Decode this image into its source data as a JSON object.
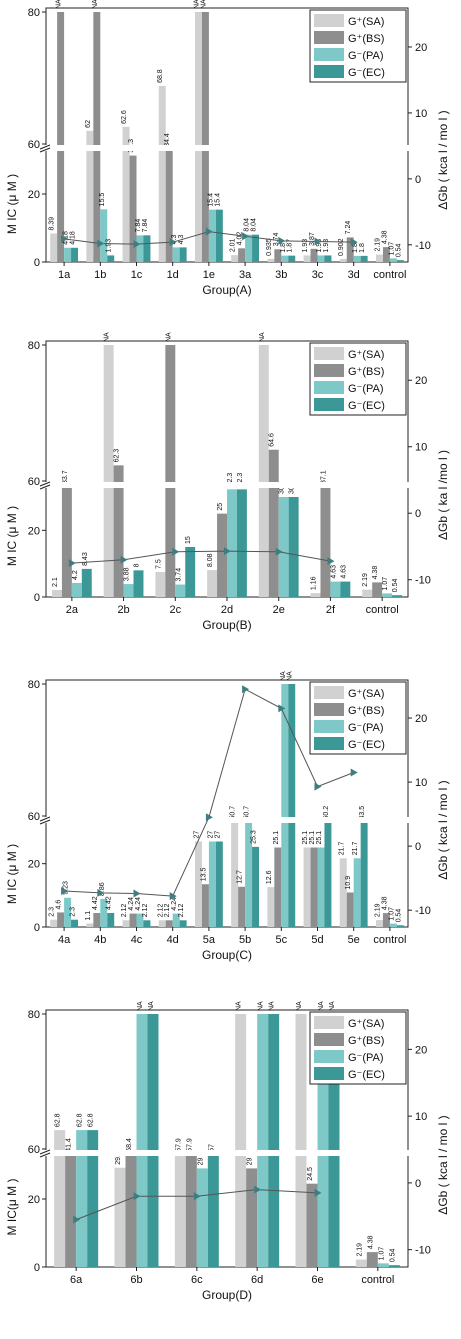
{
  "figure": {
    "background": "#ffffff"
  },
  "chart_data": [
    {
      "type": "bar",
      "xlabel": "Group(A)",
      "ylabel": "M IC (μ M )",
      "y2label": "ΔGb ( kca l / mo l )",
      "categories": [
        "1a",
        "1b",
        "1c",
        "1d",
        "1e",
        "3a",
        "3b",
        "3c",
        "3d",
        "control"
      ],
      "broken_axis": {
        "lower": [
          0,
          60
        ],
        "upper": [
          60,
          80
        ]
      },
      "yticks_lower": [
        0,
        20
      ],
      "yticks_upper": [
        60,
        80
      ],
      "y2lim": [
        -12,
        25
      ],
      "y2ticks": [
        -10,
        0,
        10,
        20
      ],
      "legend": {
        "position": "top-right",
        "labels": [
          "G⁺(SA)",
          "G⁺(BS)",
          "G⁻(PA)",
          "G⁻(EC)"
        ]
      },
      "series": [
        {
          "name": "G⁺(SA)",
          "color": "#d1d1d1",
          "values": [
            8.39,
            62,
            62.6,
            68.8,
            80,
            2.01,
            0.935,
            1.93,
            0.902,
            2.19
          ]
        },
        {
          "name": "G⁺(BS)",
          "color": "#8e8e8e",
          "values": [
            80,
            80,
            31.3,
            34.4,
            80,
            4.02,
            3.74,
            3.87,
            7.24,
            4.38
          ]
        },
        {
          "name": "G⁻(PA)",
          "color": "#7ec9c8",
          "values": [
            4.18,
            15.5,
            7.84,
            4.3,
            15.4,
            8.04,
            1.87,
            1.93,
            1.8,
            1.07
          ]
        },
        {
          "name": "G⁻(EC)",
          "color": "#3c9896",
          "values": [
            4.18,
            1.93,
            7.84,
            4.3,
            15.4,
            8.04,
            1.87,
            1.93,
            1.8,
            0.54
          ]
        }
      ],
      "bar_labels": [
        [
          "8.39",
          "NA",
          "4.18",
          "4.18"
        ],
        [
          "62",
          "NA",
          "15.5",
          "1.93"
        ],
        [
          "62.6",
          "31.3",
          "7.84",
          "7.84"
        ],
        [
          "68.8",
          "34.4",
          "4.3",
          "4.3"
        ],
        [
          "NA",
          "NA",
          "15.4",
          "15.4"
        ],
        [
          "2.01",
          "4.02",
          "8.04",
          "8.04"
        ],
        [
          "0.935",
          "3.74",
          "1.87",
          "1.87"
        ],
        [
          "1.93",
          "3.87",
          "1.93",
          "1.93"
        ],
        [
          "0.902",
          "7.24",
          "1.8",
          "1.8"
        ],
        [
          "2.19",
          "4.38",
          "1.07",
          "0.54"
        ]
      ],
      "dg_series": {
        "color": "#3f7e80",
        "values": [
          -9.1,
          -9.8,
          -9.9,
          -9.6,
          -8.0,
          -8.7,
          -9.4,
          -9.5,
          -9.6,
          null
        ]
      }
    },
    {
      "type": "bar",
      "xlabel": "Group(B)",
      "ylabel": "M IC (μ M )",
      "y2label": "ΔGb ( ka l /mo l )",
      "categories": [
        "2a",
        "2b",
        "2c",
        "2d",
        "2e",
        "2f",
        "control"
      ],
      "broken_axis": {
        "lower": [
          0,
          60
        ],
        "upper": [
          60,
          80
        ]
      },
      "yticks_lower": [
        0,
        20
      ],
      "yticks_upper": [
        60,
        80
      ],
      "y2lim": [
        -12,
        25
      ],
      "y2ticks": [
        -10,
        0,
        10,
        20
      ],
      "legend": {
        "position": "top-right",
        "labels": [
          "G⁺(SA)",
          "G⁺(BS)",
          "G⁻(PA)",
          "G⁻(EC)"
        ]
      },
      "series": [
        {
          "name": "G⁺(SA)",
          "color": "#d1d1d1",
          "values": [
            2.1,
            80,
            7.5,
            8.08,
            80,
            1.16,
            2.19
          ]
        },
        {
          "name": "G⁺(BS)",
          "color": "#8e8e8e",
          "values": [
            33.7,
            62.3,
            80,
            25,
            64.6,
            37.1,
            4.38
          ]
        },
        {
          "name": "G⁻(PA)",
          "color": "#7ec9c8",
          "values": [
            4.2,
            3.88,
            3.74,
            32.3,
            30,
            4.63,
            1.07
          ]
        },
        {
          "name": "G⁻(EC)",
          "color": "#3c9896",
          "values": [
            8.43,
            8,
            15,
            32.3,
            30,
            4.63,
            0.54
          ]
        }
      ],
      "bar_labels": [
        [
          "2.1",
          "33.7",
          "4.2",
          "8.43"
        ],
        [
          "NA",
          "62.3",
          "3.88",
          "8"
        ],
        [
          "7.5",
          "NA",
          "3.74",
          "15"
        ],
        [
          "8.08",
          "25",
          "32.3",
          "32.3"
        ],
        [
          "NA",
          "64.6",
          "30",
          "30"
        ],
        [
          "1.16",
          "37.1",
          "4.63",
          "4.63"
        ],
        [
          "2.19",
          "4.38",
          "1.07",
          "0.54"
        ]
      ],
      "dg_series": {
        "color": "#3f7e80",
        "values": [
          -7.5,
          -7.0,
          -5.8,
          -5.7,
          -5.8,
          -7.2,
          null
        ]
      }
    },
    {
      "type": "bar",
      "xlabel": "Group(C)",
      "ylabel": "M IC (μ M )",
      "y2label": "ΔGb ( kca l / mo l )",
      "categories": [
        "4a",
        "4b",
        "4c",
        "4d",
        "5a",
        "5b",
        "5c",
        "5d",
        "5e",
        "control"
      ],
      "broken_axis": {
        "lower": [
          0,
          60
        ],
        "upper": [
          60,
          80
        ]
      },
      "yticks_lower": [
        0,
        20
      ],
      "yticks_upper": [
        60,
        80
      ],
      "y2lim": [
        -12,
        25
      ],
      "y2ticks": [
        -10,
        0,
        10,
        20
      ],
      "legend": {
        "position": "top-right",
        "labels": [
          "G⁺(SA)",
          "G⁺(BS)",
          "G⁻(PA)",
          "G⁻(EC)"
        ]
      },
      "series": [
        {
          "name": "G⁺(SA)",
          "color": "#d1d1d1",
          "values": [
            2.3,
            1.1,
            2.12,
            2.12,
            27,
            50.7,
            12.6,
            25.1,
            21.7,
            2.19
          ]
        },
        {
          "name": "G⁺(BS)",
          "color": "#8e8e8e",
          "values": [
            4.6,
            4.42,
            4.24,
            2.12,
            13.5,
            12.7,
            25.1,
            25.1,
            10.9,
            4.38
          ]
        },
        {
          "name": "G⁻(PA)",
          "color": "#7ec9c8",
          "values": [
            9.23,
            8.86,
            4.24,
            4.24,
            27,
            50.7,
            80,
            25.1,
            21.7,
            1.07
          ]
        },
        {
          "name": "G⁻(EC)",
          "color": "#3c9896",
          "values": [
            2.3,
            4.42,
            2.12,
            2.12,
            27,
            25.3,
            80,
            50.2,
            43.5,
            0.54
          ]
        }
      ],
      "bar_labels": [
        [
          "2.3",
          "4.6",
          "9.23",
          "2.3"
        ],
        [
          "1.1",
          "4.42",
          "8.86",
          "4.42"
        ],
        [
          "2.12",
          "4.24",
          "4.24",
          "2.12"
        ],
        [
          "2.12",
          "2.12",
          "4.24",
          "2.12"
        ],
        [
          "27",
          "13.5",
          "27",
          "27"
        ],
        [
          "50.7",
          "12.7",
          "50.7",
          "25.3"
        ],
        [
          "12.6",
          "25.1",
          "NA",
          "NA"
        ],
        [
          "25.1",
          "25.1",
          "25.1",
          "50.2"
        ],
        [
          "21.7",
          "10.9",
          "21.7",
          "43.5"
        ],
        [
          "2.19",
          "4.38",
          "1.07",
          "0.54"
        ]
      ],
      "dg_series": {
        "color": "#3f7e80",
        "values": [
          -7.0,
          -7.3,
          -7.4,
          -7.8,
          4.5,
          24.5,
          21.5,
          9.3,
          11.5,
          null
        ]
      }
    },
    {
      "type": "bar",
      "xlabel": "Group(D)",
      "ylabel": "M IC(μ M )",
      "y2label": "ΔGb ( kca l / mo l )",
      "categories": [
        "6a",
        "6b",
        "6c",
        "6d",
        "6e",
        "control"
      ],
      "broken_axis": {
        "lower": [
          0,
          60
        ],
        "upper": [
          60,
          80
        ]
      },
      "yticks_lower": [
        0,
        20
      ],
      "yticks_upper": [
        60,
        80
      ],
      "y2lim": [
        -12,
        25
      ],
      "y2ticks": [
        -10,
        0,
        10,
        20
      ],
      "legend": {
        "position": "top-right",
        "labels": [
          "G⁺(SA)",
          "G⁺(BS)",
          "G⁻(PA)",
          "G⁻(EC)"
        ]
      },
      "series": [
        {
          "name": "G⁺(SA)",
          "color": "#d1d1d1",
          "values": [
            62.8,
            29.2,
            57.9,
            80,
            80,
            2.19
          ]
        },
        {
          "name": "G⁺(BS)",
          "color": "#8e8e8e",
          "values": [
            41.4,
            58.4,
            57.9,
            29,
            24.5,
            4.38
          ]
        },
        {
          "name": "G⁻(PA)",
          "color": "#7ec9c8",
          "values": [
            62.8,
            80,
            29,
            80,
            80,
            1.07
          ]
        },
        {
          "name": "G⁻(EC)",
          "color": "#3c9896",
          "values": [
            62.8,
            80,
            57,
            80,
            80,
            0.54
          ]
        }
      ],
      "bar_labels": [
        [
          "62.8",
          "41.4",
          "62.8",
          "62.8"
        ],
        [
          "29.2",
          "58.4",
          "NA",
          "NA"
        ],
        [
          "57.9",
          "57.9",
          "29",
          "57"
        ],
        [
          "NA",
          "29",
          "NA",
          "NA"
        ],
        [
          "NA",
          "24.5",
          "NA",
          "NA"
        ],
        [
          "2.19",
          "4.38",
          "1.07",
          "0.54"
        ]
      ],
      "dg_series": {
        "color": "#3f7e80",
        "values": [
          -5.5,
          -2.0,
          -2.0,
          -1.0,
          -1.5,
          null
        ]
      }
    }
  ]
}
